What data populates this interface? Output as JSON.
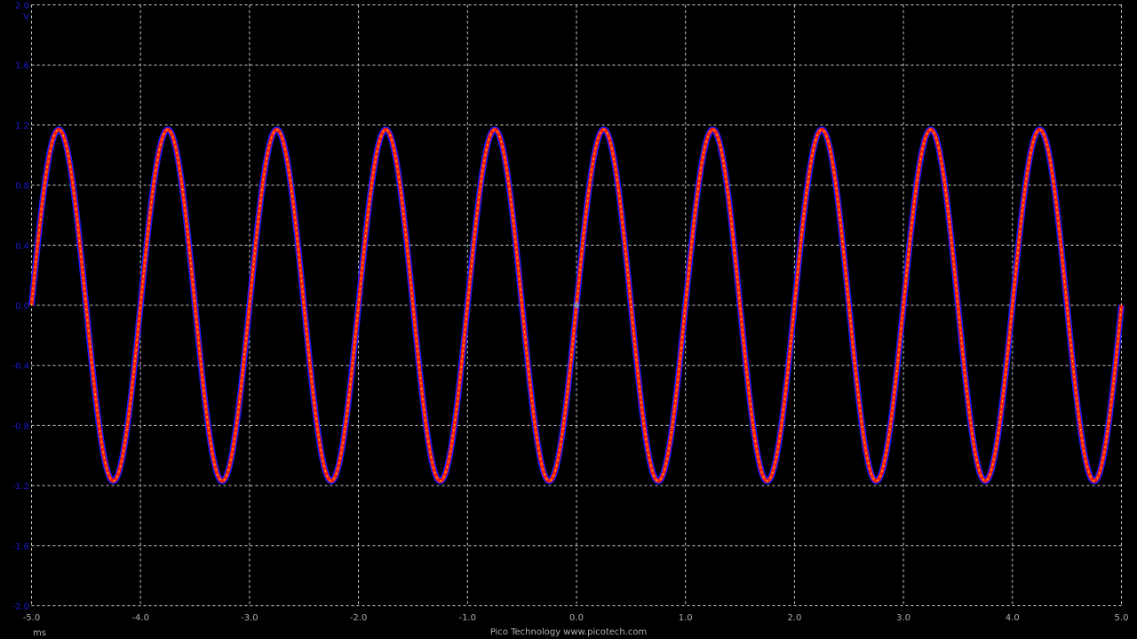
{
  "chart_data": {
    "type": "line",
    "xlabel": "ms",
    "ylabel": "V",
    "xlim": [
      -5.0,
      5.0
    ],
    "ylim": [
      -2.0,
      2.0
    ],
    "x_ticks": [
      "-5.0",
      "-4.0",
      "-3.0",
      "-2.0",
      "-1.0",
      "0.0",
      "1.0",
      "2.0",
      "3.0",
      "4.0",
      "5.0"
    ],
    "y_ticks": [
      "2.0",
      "1.6",
      "1.2",
      "0.8",
      "0.4",
      "0.0",
      "-0.4",
      "-0.8",
      "-1.2",
      "-1.6",
      "-2.0"
    ],
    "grid": true,
    "grid_style": "dashed",
    "background": "#000000",
    "trace_colors": {
      "outer": "#1a1aff",
      "core": "#ff1a00",
      "highlight": "#ffd000"
    },
    "y_label_color": "#1a1ad0",
    "x_label_color": "#b0b0b0",
    "series": [
      {
        "waveform": "sine",
        "amplitude": 1.17,
        "frequency_per_ms": 1.0,
        "phase_deg": 0,
        "x": [
          -5.0,
          -4.75,
          -4.5,
          -4.25,
          -4.0,
          -3.75,
          -3.5,
          -3.25,
          -3.0,
          -2.75,
          -2.5,
          -2.25,
          -2.0,
          -1.75,
          -1.5,
          -1.25,
          -1.0,
          -0.75,
          -0.5,
          -0.25,
          0.0,
          0.25,
          0.5,
          0.75,
          1.0,
          1.25,
          1.5,
          1.75,
          2.0,
          2.25,
          2.5,
          2.75,
          3.0,
          3.25,
          3.5,
          3.75,
          4.0,
          4.25,
          4.5,
          4.75,
          5.0
        ],
        "y": [
          0,
          1.17,
          0,
          -1.17,
          0,
          1.17,
          0,
          -1.17,
          0,
          1.17,
          0,
          -1.17,
          0,
          1.17,
          0,
          -1.17,
          0,
          1.17,
          0,
          -1.17,
          0,
          1.17,
          0,
          -1.17,
          0,
          1.17,
          0,
          -1.17,
          0,
          1.17,
          0,
          -1.17,
          0,
          1.17,
          0,
          -1.17,
          0,
          1.17,
          0,
          -1.17,
          0
        ]
      }
    ],
    "trigger_marker": {
      "x": 0.0,
      "y": 0.0,
      "color": "#8888aa"
    }
  },
  "footer": {
    "text": "Pico Technology  www.picotech.com"
  }
}
